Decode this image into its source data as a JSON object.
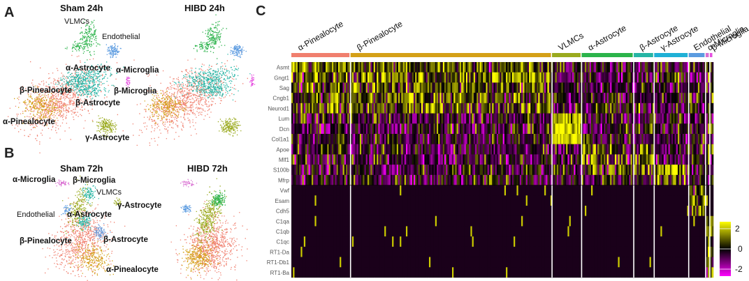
{
  "panels": {
    "a": "A",
    "b": "B",
    "c": "C"
  },
  "umap": {
    "sham24_title": "Sham 24h",
    "hibd24_title": "HIBD 24h",
    "sham72_title": "Sham 72h",
    "hibd72_title": "HIBD 72h",
    "labels24": {
      "vlmcs": "VLMCs",
      "endothelial": "Endothelial",
      "alpha_astrocyte": "α-Astrocyte",
      "alpha_microglia": "α-Microglia",
      "beta_pinealocyte": "β-Pinealocyte",
      "beta_microglia": "β-Microglia",
      "beta_astrocyte": "β-Astrocyte",
      "alpha_pinealocyte": "α-Pinealocyte",
      "gamma_astrocyte": "γ-Astrocyte"
    },
    "labels72": {
      "alpha_microglia": "α-Microglia",
      "beta_microglia": "β-Microglia",
      "vlmcs": "VLMCs",
      "gamma_astrocyte": "γ-Astrocyte",
      "endothelial": "Endothelial",
      "alpha_astrocyte": "α-Astrocyte",
      "beta_pinealocyte": "β-Pinealocyte",
      "beta_astrocyte": "β-Astrocyte",
      "alpha_pinealocyte": "α-Pinealocyte"
    },
    "colors": {
      "alpha_pinealocyte": "#d4a017",
      "beta_pinealocyte": "#f07f6e",
      "vlmcs": "#2bb34a",
      "endothelial": "#5b9be0",
      "alpha_astrocyte": "#26b5a5",
      "beta_astrocyte": "#6f9bd8",
      "gamma_astrocyte": "#9aaa1e",
      "alpha_microglia": "#d96fd2",
      "beta_microglia": "#e64fe0"
    }
  },
  "chart_data": {
    "type": "heatmap",
    "title": "",
    "genes": [
      "Asmt",
      "Gngt1",
      "Sag",
      "Cngb1",
      "Neurod1",
      "Lum",
      "Dcn",
      "Col1a1",
      "Apoe",
      "Mlf1",
      "S100b",
      "Mfrp",
      "Vwf",
      "Esam",
      "Cdh5",
      "C1qa",
      "C1qb",
      "C1qc",
      "RT1-Da",
      "RT1-Db1",
      "RT1-Ba"
    ],
    "gene_labels": [
      "Asmt",
      "Gngt1",
      "Sag",
      "Cngb1",
      "Neurod1",
      "Lum",
      "Dcn",
      "Col1a1",
      "Apoe",
      "Mlf1",
      "S100b",
      "Mfrp",
      "Vwf",
      "Esam",
      "Cdh5",
      "C1qa",
      "C1qb",
      "C1qc",
      "RT1-Da",
      "RT1-Db1",
      "RT1-Ba"
    ],
    "clusters": [
      {
        "name": "α-Pinealocyte",
        "color": "#f07f6e",
        "weight": 84,
        "marker_rows": [
          0,
          1,
          2,
          3,
          4
        ]
      },
      {
        "name": "β-Pinealocyte",
        "color": "#d4a017",
        "weight": 286,
        "marker_rows": [
          0,
          1,
          2,
          3,
          4
        ]
      },
      {
        "name": "VLMCs",
        "color": "#9aaa1e",
        "weight": 42,
        "marker_rows": [
          5,
          6,
          7
        ]
      },
      {
        "name": "α-Astrocyte",
        "color": "#2bb34a",
        "weight": 74,
        "marker_rows": [
          8,
          9,
          10
        ]
      },
      {
        "name": "β-Astrocyte",
        "color": "#26b5a5",
        "weight": 29,
        "marker_rows": [
          8,
          9,
          10
        ]
      },
      {
        "name": "γ-Astrocyte",
        "color": "#1fb0d6",
        "weight": 49,
        "marker_rows": [
          11,
          10
        ]
      },
      {
        "name": "Endothelial",
        "color": "#5b9be0",
        "weight": 24,
        "marker_rows": [
          12,
          13,
          14
        ]
      },
      {
        "name": "α-Microglia",
        "color": "#d96fd2",
        "weight": 6,
        "marker_rows": [
          15,
          16,
          17,
          18,
          19,
          20
        ]
      },
      {
        "name": "β-Microglia",
        "color": "#e64fe0",
        "weight": 5,
        "marker_rows": [
          15,
          16,
          17,
          18,
          19,
          20
        ]
      }
    ],
    "color_scale": {
      "min": -2,
      "mid": 0,
      "max": 2,
      "low": "#ff00ff",
      "mid_color": "#000000",
      "high": "#ffff00"
    },
    "legend_ticks": [
      "2",
      "0",
      "-2"
    ]
  }
}
